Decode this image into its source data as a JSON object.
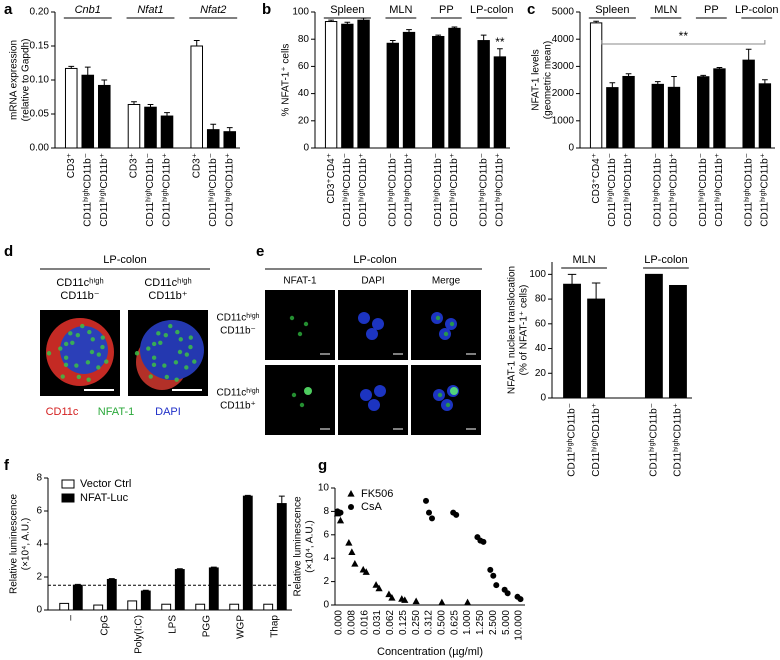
{
  "chart_data": [
    {
      "type": "bar",
      "panel": "a",
      "ylabel": [
        "mRNA expression",
        "(relative to Gapdh)"
      ],
      "ylim": [
        0,
        0.2
      ],
      "yticks": [
        {
          "value": 0,
          "label": "0.00"
        },
        {
          "value": 0.05,
          "label": "0.05"
        },
        {
          "value": 0.1,
          "label": "0.10"
        },
        {
          "value": 0.15,
          "label": "0.15"
        },
        {
          "value": 0.2,
          "label": "0.20"
        }
      ],
      "groups": [
        {
          "name": "Cnb1",
          "categories": [
            "CD3⁺",
            "CD11ʰⁱᵍʰCD11b⁻",
            "CD11ʰⁱᵍʰCD11b⁺"
          ],
          "values": [
            0.117,
            0.107,
            0.092
          ],
          "errors": [
            0.003,
            0.012,
            0.008
          ],
          "colors": [
            "#ffffff",
            "#000000",
            "#000000"
          ]
        },
        {
          "name": "Nfat1",
          "categories": [
            "CD3⁺",
            "CD11ʰⁱᵍʰCD11b⁻",
            "CD11ʰⁱᵍʰCD11b⁺"
          ],
          "values": [
            0.064,
            0.06,
            0.047
          ],
          "errors": [
            0.004,
            0.004,
            0.005
          ],
          "colors": [
            "#ffffff",
            "#000000",
            "#000000"
          ]
        },
        {
          "name": "Nfat2",
          "categories": [
            "CD3⁺",
            "CD11ʰⁱᵍʰCD11b⁻",
            "CD11ʰⁱᵍʰCD11b⁺"
          ],
          "values": [
            0.15,
            0.027,
            0.024
          ],
          "errors": [
            0.008,
            0.008,
            0.006
          ],
          "colors": [
            "#ffffff",
            "#000000",
            "#000000"
          ]
        }
      ]
    },
    {
      "type": "bar",
      "panel": "b",
      "ylabel": [
        "% NFAT-1⁺ cells"
      ],
      "ylim": [
        0,
        100
      ],
      "yticks": [
        0,
        20,
        40,
        60,
        80,
        100
      ],
      "annotation": "**",
      "groups": [
        {
          "name": "Spleen",
          "categories": [
            "CD3⁺CD4⁺",
            "CD11ʰⁱᵍʰCD11b⁻",
            "CD11ʰⁱᵍʰCD11b⁺"
          ],
          "values": [
            93,
            91,
            94
          ],
          "errors": [
            1,
            1.5,
            1.5
          ],
          "colors": [
            "#ffffff",
            "#000000",
            "#000000"
          ]
        },
        {
          "name": "MLN",
          "categories": [
            "CD11ʰⁱᵍʰCD11b⁻",
            "CD11ʰⁱᵍʰCD11b⁺"
          ],
          "values": [
            77,
            85
          ],
          "errors": [
            2,
            2
          ],
          "colors": [
            "#000000",
            "#000000"
          ]
        },
        {
          "name": "PP",
          "categories": [
            "CD11ʰⁱᵍʰCD11b⁻",
            "CD11ʰⁱᵍʰCD11b⁺"
          ],
          "values": [
            82,
            88
          ],
          "errors": [
            1,
            1
          ],
          "colors": [
            "#000000",
            "#000000"
          ]
        },
        {
          "name": "LP-colon",
          "categories": [
            "CD11ʰⁱᵍʰCD11b⁻",
            "CD11ʰⁱᵍʰCD11b⁺"
          ],
          "values": [
            79,
            67
          ],
          "errors": [
            4,
            6
          ],
          "colors": [
            "#000000",
            "#000000"
          ]
        }
      ]
    },
    {
      "type": "bar",
      "panel": "c",
      "ylabel": [
        "NFAT-1 levels",
        "(geometric mean)"
      ],
      "ylim": [
        0,
        5000
      ],
      "yticks": [
        0,
        1000,
        2000,
        3000,
        4000,
        5000
      ],
      "annotation": "**",
      "groups": [
        {
          "name": "Spleen",
          "categories": [
            "CD3⁺CD4⁺",
            "CD11ʰⁱᵍʰCD11b⁻",
            "CD11ʰⁱᵍʰCD11b⁺"
          ],
          "values": [
            4600,
            2220,
            2630
          ],
          "errors": [
            60,
            180,
            100
          ],
          "colors": [
            "#ffffff",
            "#000000",
            "#000000"
          ]
        },
        {
          "name": "MLN",
          "categories": [
            "CD11ʰⁱᵍʰCD11b⁻",
            "CD11ʰⁱᵍʰCD11b⁺"
          ],
          "values": [
            2340,
            2230
          ],
          "errors": [
            100,
            400
          ],
          "colors": [
            "#000000",
            "#000000"
          ]
        },
        {
          "name": "PP",
          "categories": [
            "CD11ʰⁱᵍʰCD11b⁻",
            "CD11ʰⁱᵍʰCD11b⁺"
          ],
          "values": [
            2620,
            2910
          ],
          "errors": [
            50,
            50
          ],
          "colors": [
            "#000000",
            "#000000"
          ]
        },
        {
          "name": "LP-colon",
          "categories": [
            "CD11ʰⁱᵍʰCD11b⁻",
            "CD11ʰⁱᵍʰCD11b⁺"
          ],
          "values": [
            3230,
            2360
          ],
          "errors": [
            400,
            150
          ],
          "colors": [
            "#000000",
            "#000000"
          ]
        }
      ]
    },
    {
      "type": "bar",
      "ylabel": [
        "NFAT-1 nuclear translocation",
        "(% of NFAT-1⁺ cells)"
      ],
      "ylim": [
        0,
        110
      ],
      "yticks": [
        0,
        20,
        40,
        60,
        80,
        100
      ],
      "groups": [
        {
          "name": "MLN",
          "categories": [
            "CD11ʰⁱᵍʰCD11b⁻",
            "CD11ʰⁱᵍʰCD11b⁺"
          ],
          "values": [
            92,
            80
          ],
          "errors": [
            8,
            13
          ],
          "colors": [
            "#000000",
            "#000000"
          ]
        },
        {
          "name": "LP-colon",
          "categories": [
            "CD11ʰⁱᵍʰCD11b⁻",
            "CD11ʰⁱᵍʰCD11b⁺"
          ],
          "values": [
            100,
            91
          ],
          "colors": [
            "#000000",
            "#000000"
          ]
        }
      ]
    },
    {
      "type": "bar",
      "panel": "f",
      "ylabel": [
        "Relative luminescence",
        "(×10⁴, A.U.)"
      ],
      "ylim": [
        0,
        8
      ],
      "yticks": [
        0,
        2,
        4,
        6,
        8
      ],
      "refline": 1.5,
      "categories": [
        "–",
        "CpG",
        "Poly(I:C)",
        "LPS",
        "PGG",
        "WGP",
        "Thap"
      ],
      "series": [
        {
          "name": "Vector Ctrl",
          "color": "#ffffff",
          "values": [
            0.4,
            0.3,
            0.55,
            0.35,
            0.35,
            0.35,
            0.35
          ]
        },
        {
          "name": "NFAT-Luc",
          "color": "#000000",
          "values": [
            1.5,
            1.85,
            1.15,
            2.45,
            2.55,
            6.9,
            6.45
          ],
          "errors": [
            0.05,
            0.05,
            0.05,
            0.05,
            0.05,
            0.05,
            0.45
          ]
        }
      ]
    },
    {
      "type": "scatter",
      "panel": "g",
      "ylabel": [
        "Relative luminescence",
        "(×10⁴, A.U.)"
      ],
      "xlabel": "Concentration (µg/ml)",
      "ylim": [
        0,
        10
      ],
      "yticks": [
        0,
        2,
        4,
        6,
        8,
        10
      ],
      "categories": [
        "0.000",
        "0.008",
        "0.016",
        "0.031",
        "0.062",
        "0.125",
        "0.250",
        "0.312",
        "0.500",
        "0.625",
        "1.000",
        "1.250",
        "2.500",
        "5.000",
        "10.000"
      ],
      "series": [
        {
          "name": "FK506",
          "marker": "triangle",
          "color": "#000000",
          "values": [
            [
              7.8,
              7.2
            ],
            [
              5.3,
              4.5,
              3.5
            ],
            [
              3.0,
              2.8
            ],
            [
              1.7,
              1.4
            ],
            [
              0.9,
              0.6
            ],
            [
              0.5,
              0.4
            ],
            [
              0.3
            ],
            null,
            [
              0.2
            ],
            null,
            [
              0.2
            ],
            null,
            null,
            null,
            null
          ]
        },
        {
          "name": "CsA",
          "marker": "circle",
          "color": "#000000",
          "values": [
            [
              8.0,
              7.9
            ],
            null,
            null,
            null,
            null,
            null,
            null,
            [
              8.9,
              7.9,
              7.4
            ],
            null,
            [
              7.9,
              7.7
            ],
            null,
            [
              5.8,
              5.5,
              5.4
            ],
            [
              3.0,
              2.5,
              1.7
            ],
            [
              1.3,
              1.0
            ],
            [
              0.7,
              0.5
            ]
          ]
        }
      ]
    }
  ],
  "images": {
    "d": {
      "panel": "d",
      "title": "LP-colon",
      "columns": [
        [
          "CD11cʰⁱᵍʰ",
          "CD11b⁻"
        ],
        [
          "CD11cʰⁱᵍʰ",
          "CD11b⁺"
        ]
      ],
      "legend": [
        "CD11c",
        "NFAT-1",
        "DAPI"
      ]
    },
    "e": {
      "panel": "e",
      "title": "LP-colon",
      "columns": [
        "NFAT-1",
        "DAPI",
        "Merge"
      ],
      "rows": [
        [
          "CD11cʰⁱᵍʰ",
          "CD11b⁻"
        ],
        [
          "CD11cʰⁱᵍʰ",
          "CD11b⁺"
        ]
      ]
    }
  }
}
